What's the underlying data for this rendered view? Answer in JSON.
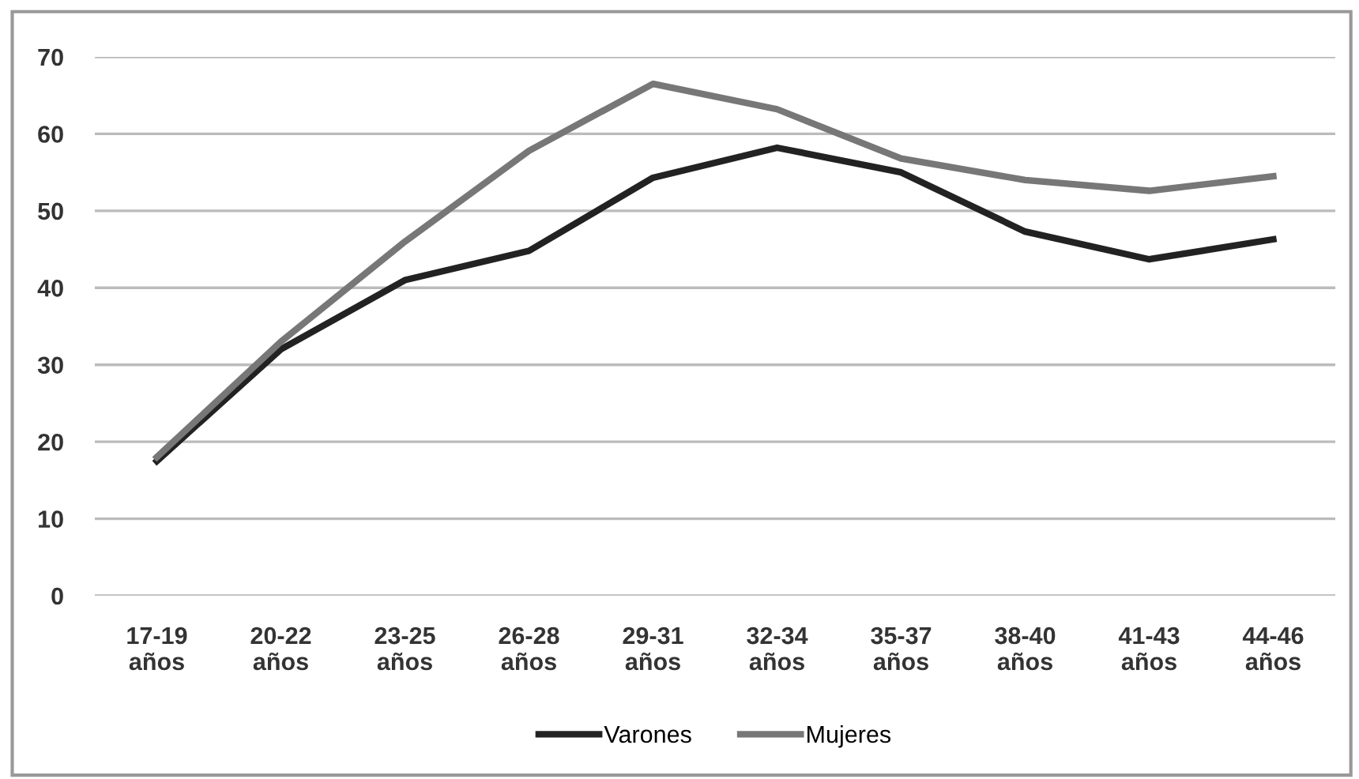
{
  "chart_data": {
    "type": "line",
    "categories": [
      "17-19\naños",
      "20-22\naños",
      "23-25\naños",
      "26-28\naños",
      "29-31\naños",
      "32-34\naños",
      "35-37\naños",
      "38-40\naños",
      "41-43\naños",
      "44-46\naños"
    ],
    "series": [
      {
        "name": "Varones",
        "color": "#222222",
        "values": [
          17.5,
          32,
          41,
          44.8,
          54.3,
          58.2,
          55.0,
          47.3,
          43.7,
          46.3
        ]
      },
      {
        "name": "Mujeres",
        "color": "#777777",
        "values": [
          18,
          33,
          46,
          57.8,
          66.5,
          63.2,
          56.8,
          54,
          52.6,
          54.5
        ]
      }
    ],
    "ylim": [
      0,
      70
    ],
    "yticks": [
      0,
      10,
      20,
      30,
      40,
      50,
      60,
      70
    ],
    "grid": "y",
    "legend": "bottom",
    "marker": "none",
    "line_style": "solid"
  }
}
